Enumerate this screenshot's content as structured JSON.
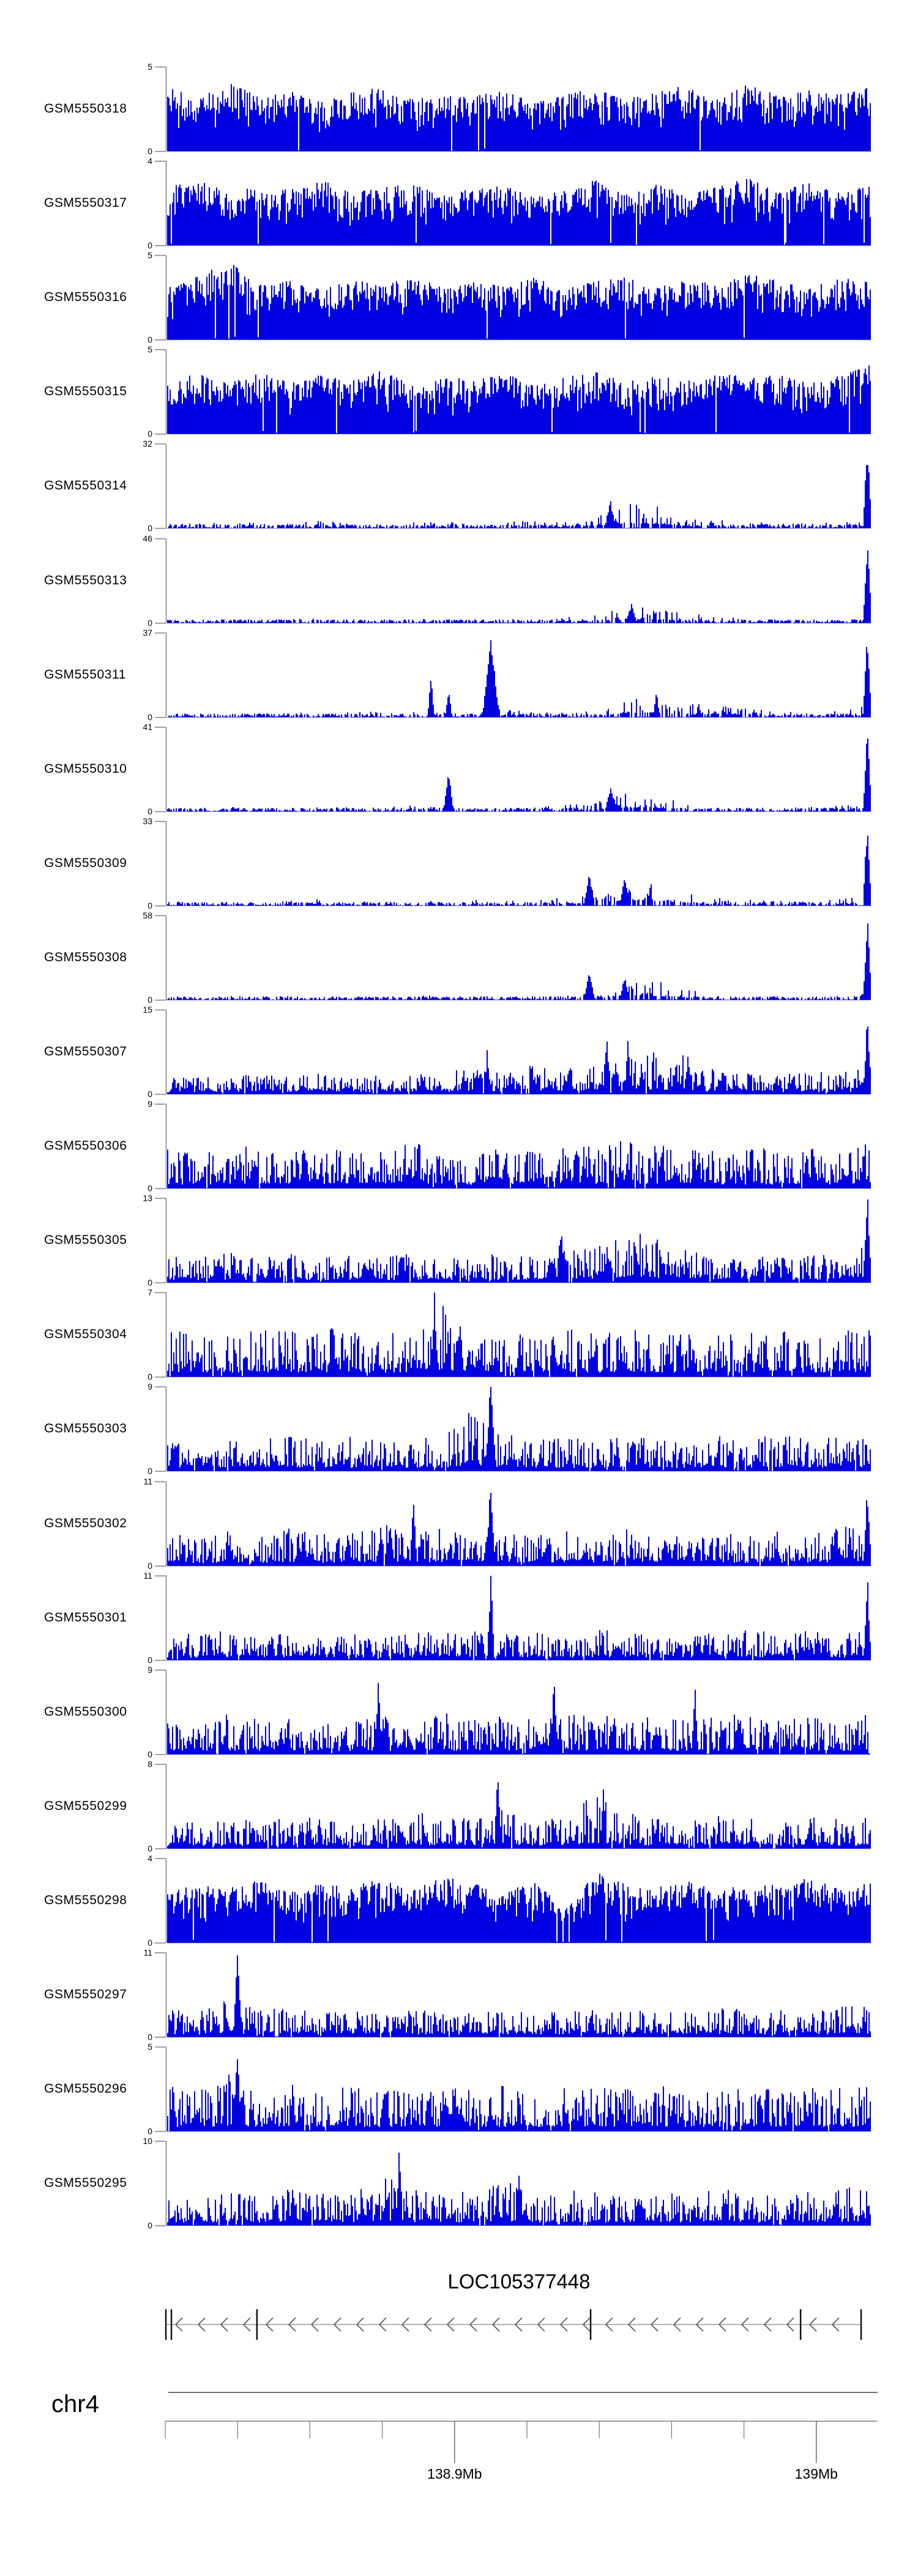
{
  "figure": {
    "kind": "genome coverage tracks (GEO samples) over chr4 with gene model and coordinate ruler",
    "bar_color": "#0000e0",
    "axis_color": "#808080",
    "text_color": "#000000"
  },
  "chart_data": {
    "type": "area",
    "title": "",
    "xlabel_chromosome": "chr4",
    "x_tick_labels": [
      "138.9Mb",
      "139Mb"
    ],
    "x_range_mb_estimate": [
      138.82,
      139.02
    ],
    "minor_tick_interval_mb": 0.02,
    "ylabel": "read coverage (per-track scale 0 to max)",
    "gene_track": {
      "gene": "LOC105377448",
      "strand": "minus (left-pointing arrows)",
      "exon_marks_frac": [
        0.0,
        0.008,
        0.131,
        0.611,
        0.913,
        1.0
      ]
    },
    "tracks": [
      {
        "label": "GSM5550318",
        "ymin": 0,
        "ymax": 5,
        "type": "dense",
        "env": [
          0.78,
          0.64,
          0.82,
          0.66,
          0.72,
          0.6,
          0.7,
          0.76,
          0.62,
          0.72,
          0.66,
          0.74,
          0.6,
          0.68,
          0.76,
          0.63,
          0.71,
          0.8,
          0.64,
          0.84,
          0.66,
          0.73,
          0.68,
          0.76
        ],
        "spikes": []
      },
      {
        "label": "GSM5550317",
        "ymin": 0,
        "ymax": 4,
        "type": "dense",
        "env": [
          0.68,
          0.84,
          0.62,
          0.72,
          0.66,
          0.8,
          0.62,
          0.7,
          0.74,
          0.6,
          0.68,
          0.72,
          0.58,
          0.66,
          0.78,
          0.62,
          0.74,
          0.6,
          0.7,
          0.82,
          0.64,
          0.76,
          0.62,
          0.72
        ],
        "spikes": []
      },
      {
        "label": "GSM5550316",
        "ymin": 0,
        "ymax": 5,
        "type": "dense",
        "env": [
          0.62,
          0.76,
          0.94,
          0.66,
          0.7,
          0.6,
          0.72,
          0.66,
          0.76,
          0.62,
          0.7,
          0.64,
          0.74,
          0.6,
          0.7,
          0.76,
          0.62,
          0.72,
          0.66,
          0.8,
          0.7,
          0.62,
          0.74,
          0.68
        ],
        "spikes": []
      },
      {
        "label": "GSM5550315",
        "ymin": 0,
        "ymax": 5,
        "type": "dense",
        "env": [
          0.66,
          0.72,
          0.6,
          0.74,
          0.62,
          0.7,
          0.66,
          0.76,
          0.6,
          0.7,
          0.64,
          0.72,
          0.6,
          0.68,
          0.74,
          0.62,
          0.7,
          0.64,
          0.76,
          0.66,
          0.72,
          0.6,
          0.7,
          0.82
        ],
        "spikes": [
          [
            0.998,
            0.85,
            5
          ]
        ]
      },
      {
        "label": "GSM5550314",
        "ymin": 0,
        "ymax": 32,
        "type": "sparse",
        "env": [
          0.06,
          0.06,
          0.08,
          0.07,
          0.06,
          0.1,
          0.08,
          0.06,
          0.07,
          0.08,
          0.06,
          0.08,
          0.1,
          0.08,
          0.14,
          0.3,
          0.26,
          0.14,
          0.1,
          0.08,
          0.07,
          0.06,
          0.08,
          0.12
        ],
        "spikes": [
          [
            0.63,
            0.33,
            8
          ],
          [
            0.995,
            1.0,
            6
          ]
        ]
      },
      {
        "label": "GSM5550313",
        "ymin": 0,
        "ymax": 46,
        "type": "sparse",
        "env": [
          0.04,
          0.04,
          0.05,
          0.04,
          0.05,
          0.06,
          0.05,
          0.04,
          0.05,
          0.06,
          0.04,
          0.05,
          0.06,
          0.08,
          0.1,
          0.2,
          0.22,
          0.12,
          0.08,
          0.06,
          0.05,
          0.04,
          0.05,
          0.1
        ],
        "spikes": [
          [
            0.66,
            0.22,
            8
          ],
          [
            0.995,
            1.0,
            6
          ]
        ]
      },
      {
        "label": "GSM5550311",
        "ymin": 0,
        "ymax": 37,
        "type": "sparse",
        "env": [
          0.05,
          0.05,
          0.06,
          0.05,
          0.06,
          0.05,
          0.06,
          0.08,
          0.1,
          0.08,
          0.06,
          0.12,
          0.08,
          0.06,
          0.08,
          0.26,
          0.3,
          0.15,
          0.2,
          0.16,
          0.08,
          0.06,
          0.08,
          0.16
        ],
        "spikes": [
          [
            0.375,
            0.45,
            5
          ],
          [
            0.4,
            0.3,
            5
          ],
          [
            0.46,
            0.88,
            12
          ],
          [
            0.995,
            1.0,
            6
          ]
        ]
      },
      {
        "label": "GSM5550310",
        "ymin": 0,
        "ymax": 41,
        "type": "sparse",
        "env": [
          0.04,
          0.05,
          0.06,
          0.05,
          0.06,
          0.05,
          0.06,
          0.05,
          0.08,
          0.1,
          0.06,
          0.08,
          0.06,
          0.08,
          0.12,
          0.25,
          0.22,
          0.12,
          0.08,
          0.06,
          0.05,
          0.06,
          0.08,
          0.14
        ],
        "spikes": [
          [
            0.4,
            0.5,
            7
          ],
          [
            0.63,
            0.28,
            8
          ],
          [
            0.995,
            1.0,
            6
          ]
        ]
      },
      {
        "label": "GSM5550309",
        "ymin": 0,
        "ymax": 33,
        "type": "sparse",
        "env": [
          0.05,
          0.05,
          0.06,
          0.05,
          0.06,
          0.08,
          0.06,
          0.05,
          0.08,
          0.06,
          0.08,
          0.06,
          0.08,
          0.1,
          0.16,
          0.35,
          0.3,
          0.18,
          0.1,
          0.08,
          0.06,
          0.05,
          0.08,
          0.14
        ],
        "spikes": [
          [
            0.6,
            0.38,
            8
          ],
          [
            0.65,
            0.33,
            7
          ],
          [
            0.995,
            1.0,
            6
          ]
        ]
      },
      {
        "label": "GSM5550308",
        "ymin": 0,
        "ymax": 58,
        "type": "sparse",
        "env": [
          0.03,
          0.04,
          0.05,
          0.04,
          0.05,
          0.04,
          0.05,
          0.04,
          0.06,
          0.05,
          0.04,
          0.06,
          0.05,
          0.06,
          0.1,
          0.28,
          0.24,
          0.14,
          0.08,
          0.05,
          0.04,
          0.04,
          0.05,
          0.1
        ],
        "spikes": [
          [
            0.6,
            0.3,
            8
          ],
          [
            0.65,
            0.28,
            7
          ],
          [
            0.995,
            1.0,
            6
          ]
        ]
      },
      {
        "label": "GSM5550307",
        "ymin": 0,
        "ymax": 15,
        "type": "moderate",
        "env": [
          0.22,
          0.2,
          0.25,
          0.22,
          0.28,
          0.24,
          0.2,
          0.26,
          0.22,
          0.28,
          0.3,
          0.26,
          0.35,
          0.3,
          0.34,
          0.4,
          0.55,
          0.45,
          0.3,
          0.26,
          0.24,
          0.28,
          0.26,
          0.35
        ],
        "spikes": [
          [
            0.455,
            0.5,
            5
          ],
          [
            0.625,
            0.68,
            6
          ],
          [
            0.655,
            0.62,
            5
          ],
          [
            0.74,
            0.45,
            5
          ],
          [
            0.995,
            0.95,
            5
          ]
        ]
      },
      {
        "label": "GSM5550306",
        "ymin": 0,
        "ymax": 9,
        "type": "moderate",
        "env": [
          0.5,
          0.45,
          0.55,
          0.48,
          0.52,
          0.45,
          0.5,
          0.46,
          0.54,
          0.48,
          0.44,
          0.52,
          0.46,
          0.5,
          0.55,
          0.6,
          0.52,
          0.48,
          0.45,
          0.5,
          0.46,
          0.52,
          0.48,
          0.55
        ],
        "spikes": []
      },
      {
        "label": "GSM5550305",
        "ymin": 0,
        "ymax": 13,
        "type": "moderate",
        "env": [
          0.35,
          0.3,
          0.38,
          0.32,
          0.36,
          0.3,
          0.34,
          0.3,
          0.38,
          0.34,
          0.3,
          0.36,
          0.32,
          0.38,
          0.46,
          0.68,
          0.54,
          0.4,
          0.34,
          0.3,
          0.32,
          0.36,
          0.32,
          0.45
        ],
        "spikes": [
          [
            0.56,
            0.7,
            6
          ],
          [
            0.995,
            1.0,
            6
          ]
        ]
      },
      {
        "label": "GSM5550304",
        "ymin": 0,
        "ymax": 7,
        "type": "moderate",
        "env": [
          0.55,
          0.6,
          0.52,
          0.58,
          0.54,
          0.6,
          0.55,
          0.5,
          0.56,
          0.9,
          0.52,
          0.56,
          0.5,
          0.58,
          0.54,
          0.6,
          0.56,
          0.52,
          0.58,
          0.54,
          0.6,
          0.52,
          0.56,
          0.6
        ],
        "spikes": [
          [
            0.38,
            0.95,
            5
          ]
        ]
      },
      {
        "label": "GSM5550303",
        "ymin": 0,
        "ymax": 9,
        "type": "moderate",
        "env": [
          0.4,
          0.35,
          0.42,
          0.38,
          0.44,
          0.38,
          0.42,
          0.36,
          0.44,
          0.4,
          0.75,
          0.45,
          0.38,
          0.42,
          0.38,
          0.44,
          0.4,
          0.36,
          0.42,
          0.38,
          0.44,
          0.38,
          0.42,
          0.45
        ],
        "spikes": [
          [
            0.46,
            1.0,
            8
          ]
        ]
      },
      {
        "label": "GSM5550302",
        "ymin": 0,
        "ymax": 11,
        "type": "moderate",
        "env": [
          0.4,
          0.35,
          0.42,
          0.36,
          0.45,
          0.38,
          0.42,
          0.52,
          0.4,
          0.45,
          0.38,
          0.42,
          0.36,
          0.44,
          0.4,
          0.46,
          0.38,
          0.44,
          0.4,
          0.36,
          0.42,
          0.38,
          0.48,
          0.58
        ],
        "spikes": [
          [
            0.35,
            0.9,
            5
          ],
          [
            0.46,
            1.0,
            6
          ],
          [
            0.995,
            0.9,
            5
          ]
        ]
      },
      {
        "label": "GSM5550301",
        "ymin": 0,
        "ymax": 11,
        "type": "moderate",
        "env": [
          0.35,
          0.3,
          0.36,
          0.32,
          0.38,
          0.3,
          0.34,
          0.3,
          0.36,
          0.32,
          0.38,
          0.32,
          0.36,
          0.3,
          0.38,
          0.34,
          0.3,
          0.36,
          0.32,
          0.38,
          0.32,
          0.36,
          0.3,
          0.4
        ],
        "spikes": [
          [
            0.46,
            1.0,
            5
          ],
          [
            0.995,
            1.0,
            5
          ]
        ]
      },
      {
        "label": "GSM5550300",
        "ymin": 0,
        "ymax": 9,
        "type": "moderate",
        "env": [
          0.45,
          0.4,
          0.48,
          0.42,
          0.5,
          0.44,
          0.4,
          0.46,
          0.42,
          0.5,
          0.44,
          0.48,
          0.42,
          0.46,
          0.5,
          0.44,
          0.48,
          0.42,
          0.46,
          0.5,
          0.42,
          0.48,
          0.44,
          0.5
        ],
        "spikes": [
          [
            0.3,
            0.85,
            5
          ],
          [
            0.55,
            0.9,
            5
          ],
          [
            0.75,
            0.8,
            5
          ]
        ]
      },
      {
        "label": "GSM5550299",
        "ymin": 0,
        "ymax": 8,
        "type": "moderate",
        "env": [
          0.3,
          0.35,
          0.32,
          0.38,
          0.34,
          0.4,
          0.3,
          0.36,
          0.45,
          0.4,
          0.35,
          0.5,
          0.3,
          0.42,
          0.65,
          0.45,
          0.38,
          0.35,
          0.4,
          0.36,
          0.32,
          0.38,
          0.35,
          0.42
        ],
        "spikes": [
          [
            0.47,
            0.98,
            5
          ],
          [
            0.62,
            0.66,
            5
          ]
        ]
      },
      {
        "label": "GSM5550298",
        "ymin": 0,
        "ymax": 4,
        "type": "dense",
        "env": [
          0.6,
          0.7,
          0.65,
          0.75,
          0.6,
          0.72,
          0.66,
          0.78,
          0.62,
          0.8,
          0.7,
          0.64,
          0.74,
          0.4,
          0.85,
          0.7,
          0.66,
          0.76,
          0.62,
          0.72,
          0.68,
          0.78,
          0.64,
          0.72
        ],
        "spikes": []
      },
      {
        "label": "GSM5550297",
        "ymin": 0,
        "ymax": 11,
        "type": "moderate",
        "env": [
          0.35,
          0.3,
          0.45,
          0.32,
          0.36,
          0.3,
          0.34,
          0.3,
          0.36,
          0.32,
          0.3,
          0.34,
          0.3,
          0.36,
          0.32,
          0.3,
          0.34,
          0.3,
          0.36,
          0.32,
          0.34,
          0.3,
          0.36,
          0.4
        ],
        "spikes": [
          [
            0.1,
            1.0,
            6
          ]
        ]
      },
      {
        "label": "GSM5550296",
        "ymin": 0,
        "ymax": 5,
        "type": "moderate",
        "env": [
          0.55,
          0.5,
          0.7,
          0.52,
          0.56,
          0.5,
          0.54,
          0.5,
          0.58,
          0.52,
          0.5,
          0.56,
          0.52,
          0.58,
          0.54,
          0.5,
          0.56,
          0.52,
          0.58,
          0.54,
          0.5,
          0.56,
          0.52,
          0.58
        ],
        "spikes": [
          [
            0.1,
            0.9,
            6
          ]
        ]
      },
      {
        "label": "GSM5550295",
        "ymin": 0,
        "ymax": 10,
        "type": "moderate",
        "env": [
          0.4,
          0.35,
          0.42,
          0.36,
          0.44,
          0.38,
          0.42,
          0.6,
          0.44,
          0.38,
          0.42,
          0.55,
          0.38,
          0.44,
          0.4,
          0.36,
          0.42,
          0.38,
          0.44,
          0.4,
          0.36,
          0.42,
          0.46,
          0.5
        ],
        "spikes": [
          [
            0.33,
            0.9,
            5
          ],
          [
            0.5,
            0.6,
            5
          ]
        ]
      }
    ]
  }
}
